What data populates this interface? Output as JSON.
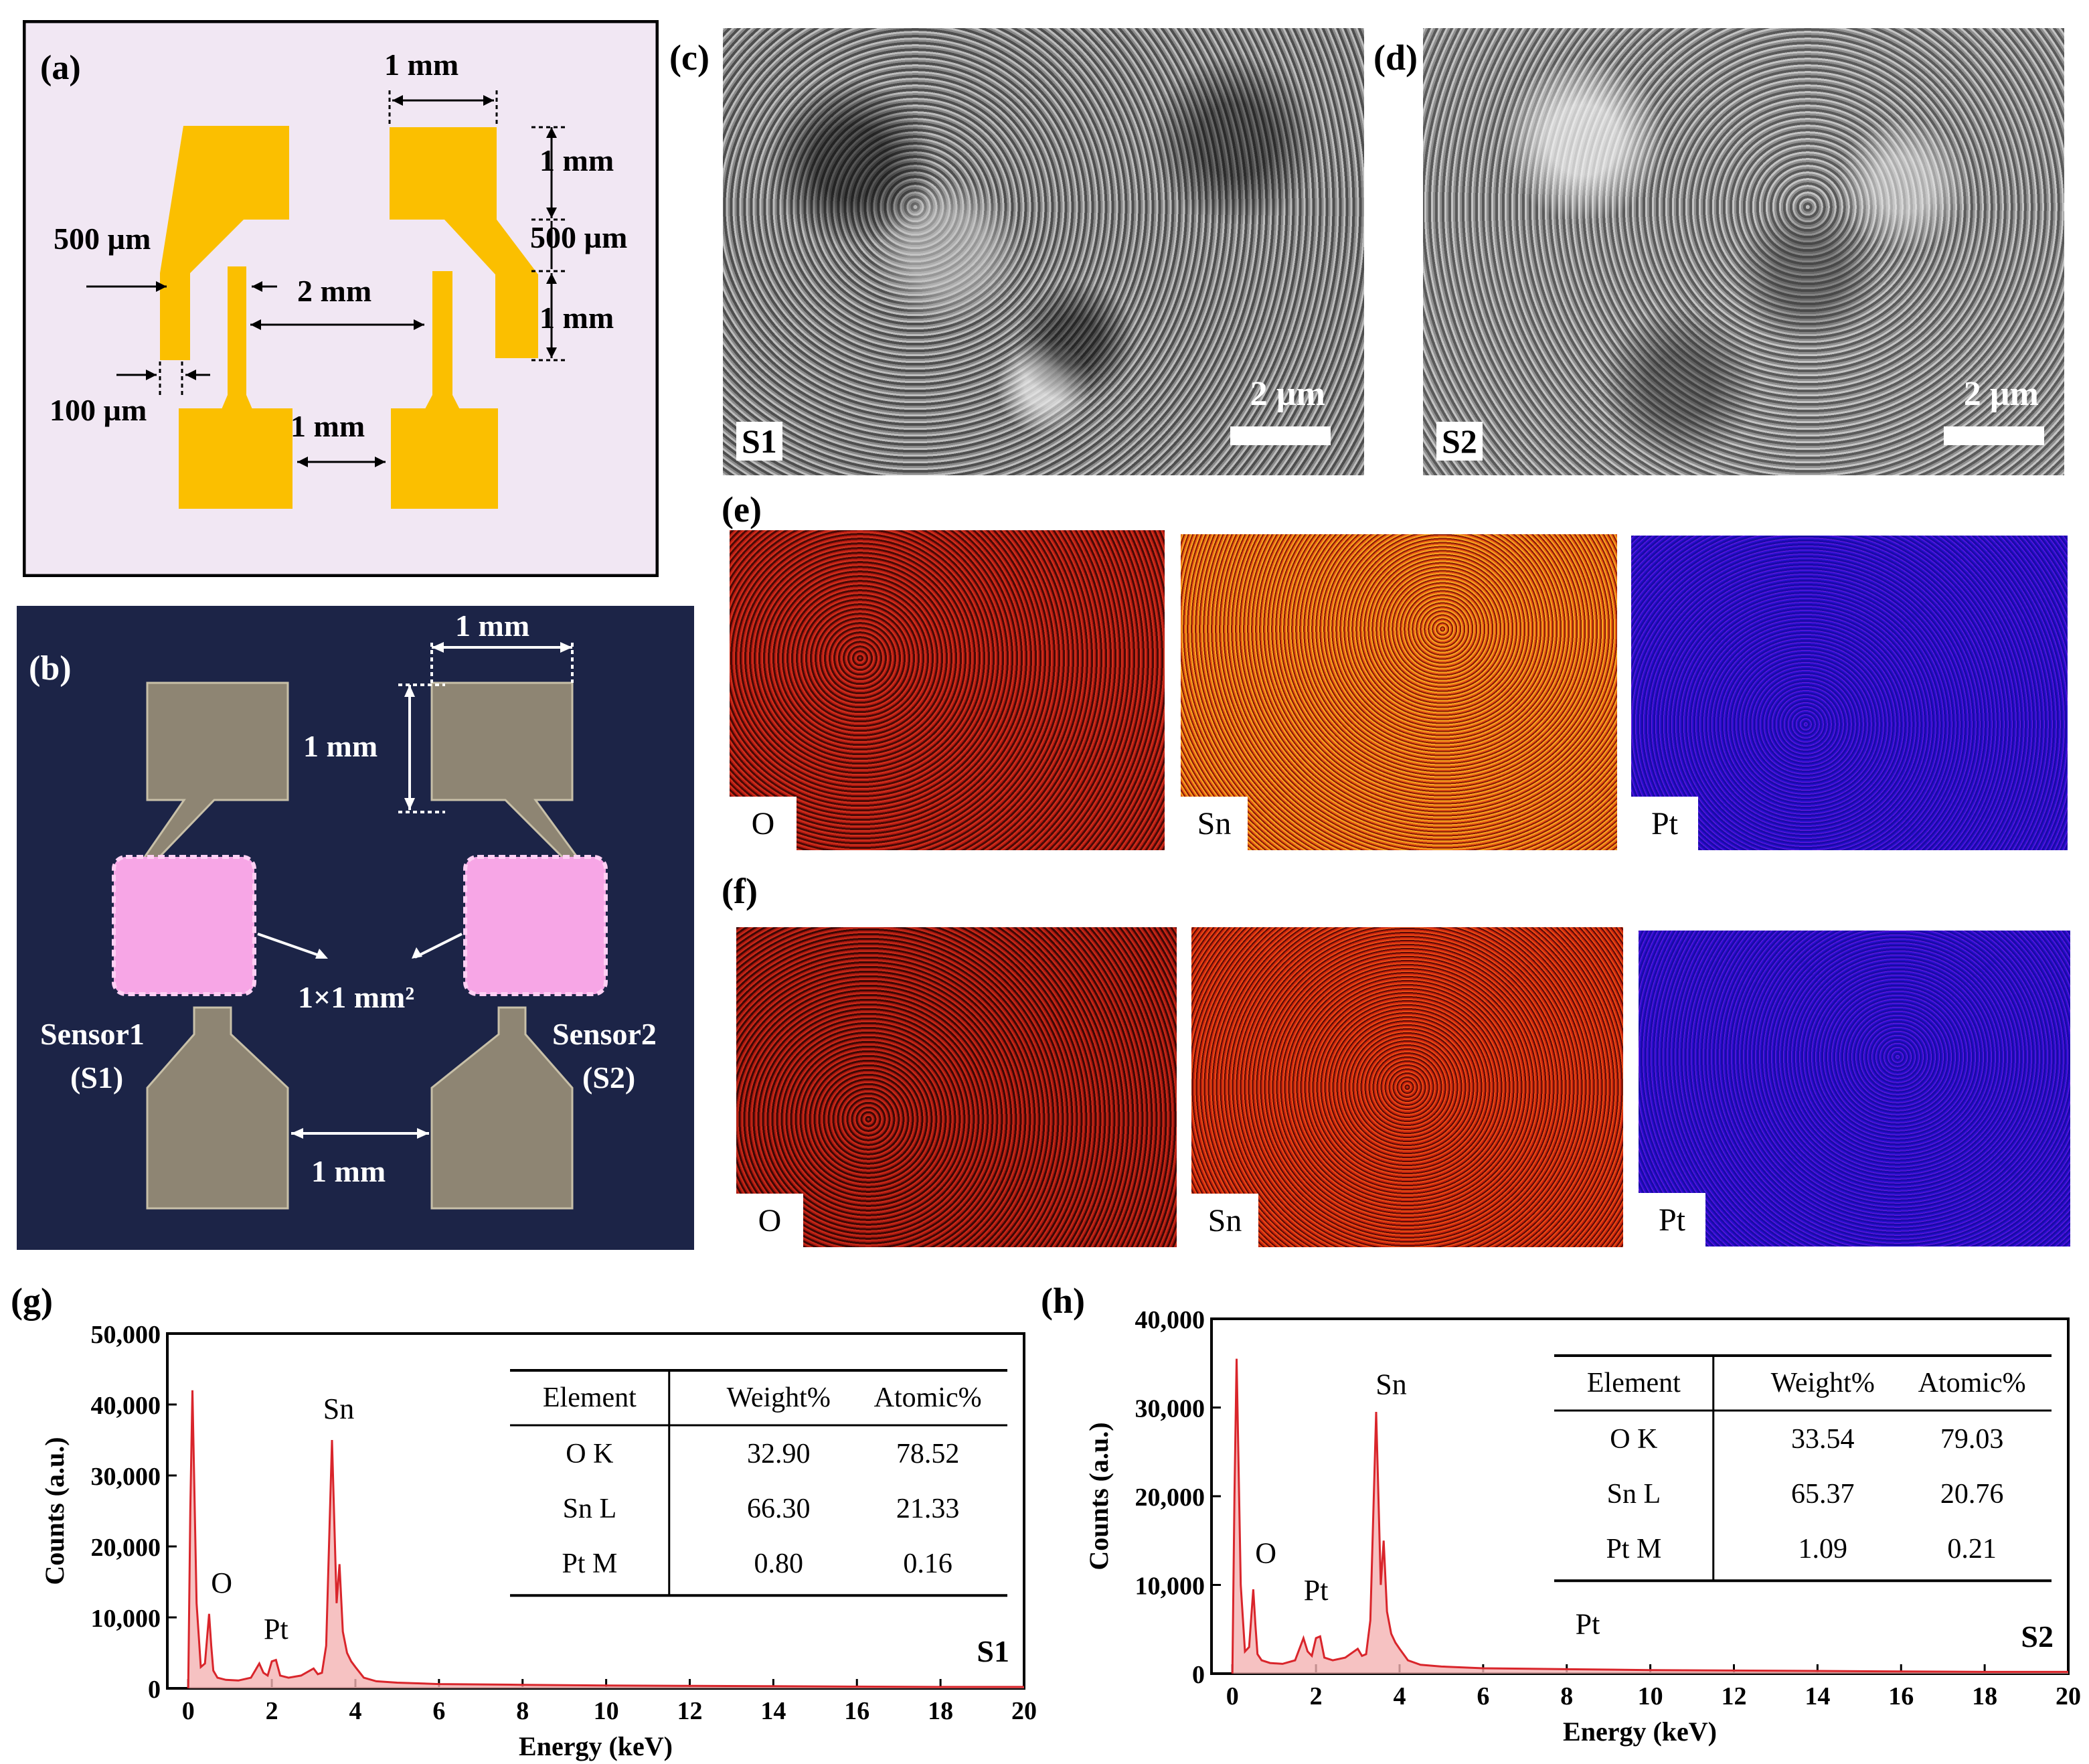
{
  "panel_labels": {
    "a": "(a)",
    "b": "(b)",
    "c": "(c)",
    "d": "(d)",
    "e": "(e)",
    "f": "(f)",
    "g": "(g)",
    "h": "(h)"
  },
  "panel_a": {
    "dims": {
      "top_width": "1 mm",
      "pad_height": "1 mm",
      "taper": "500 µm",
      "finger_length": "1 mm",
      "trace_gap": "500 µm",
      "electrode_gap": "2 mm",
      "finger_width": "100 µm",
      "bottom_gap": "1 mm"
    },
    "colors": {
      "background": "#f1e7f3",
      "electrode": "#fbbf00"
    }
  },
  "panel_b": {
    "dims": {
      "top_width": "1 mm",
      "pad_height": "1 mm",
      "bottom_gap": "1 mm"
    },
    "area": "1×1 mm²",
    "sensor1": {
      "name": "Sensor1",
      "tag": "(S1)"
    },
    "sensor2": {
      "name": "Sensor2",
      "tag": "(S2)"
    },
    "colors": {
      "background": "#1c2447",
      "pad": "#8e8573",
      "film": "#f7a6e6"
    }
  },
  "panel_c": {
    "sample": "S1",
    "scale": "2 µm"
  },
  "panel_d": {
    "sample": "S2",
    "scale": "2 µm"
  },
  "panel_e": {
    "maps": [
      "O",
      "Sn",
      "Pt"
    ]
  },
  "panel_f": {
    "maps": [
      "O",
      "Sn",
      "Pt"
    ]
  },
  "chart_data": [
    {
      "type": "line",
      "panel": "(g)",
      "sample": "S1",
      "xlabel": "Energy (keV)",
      "ylabel": "Counts (a.u.)",
      "xlim": [
        -0.5,
        20
      ],
      "ylim": [
        0,
        50000
      ],
      "xticks": [
        "0",
        "2",
        "4",
        "6",
        "8",
        "10",
        "12",
        "14",
        "16",
        "18",
        "20"
      ],
      "yticks": [
        "0",
        "10,000",
        "20,000",
        "30,000",
        "40,000",
        "50,000"
      ],
      "peak_labels": [
        "O",
        "Pt",
        "Sn"
      ],
      "color": "#d9252b",
      "series": [
        {
          "name": "S1",
          "x": [
            0,
            0.05,
            0.1,
            0.2,
            0.3,
            0.4,
            0.5,
            0.55,
            0.6,
            0.7,
            0.9,
            1.2,
            1.5,
            1.7,
            1.8,
            1.9,
            2.0,
            2.1,
            2.2,
            2.4,
            2.7,
            3.0,
            3.1,
            3.2,
            3.3,
            3.44,
            3.55,
            3.62,
            3.7,
            3.8,
            3.9,
            4.0,
            4.2,
            4.5,
            5.0,
            6,
            8,
            10,
            12,
            14,
            16,
            18,
            20
          ],
          "values": [
            0,
            25000,
            42000,
            12000,
            3000,
            3500,
            10500,
            6000,
            2500,
            1500,
            1200,
            1100,
            1500,
            3500,
            2200,
            1800,
            3800,
            4000,
            1800,
            1500,
            1800,
            2800,
            2000,
            2200,
            6000,
            35000,
            12000,
            17500,
            8000,
            5000,
            3800,
            3000,
            1500,
            1000,
            800,
            600,
            500,
            400,
            350,
            300,
            250,
            200,
            200
          ]
        }
      ],
      "table": {
        "headers": [
          "Element",
          "Weight%",
          "Atomic%"
        ],
        "rows": [
          [
            "O K",
            "32.90",
            "78.52"
          ],
          [
            "Sn L",
            "66.30",
            "21.33"
          ],
          [
            "Pt M",
            "0.80",
            "0.16"
          ]
        ]
      }
    },
    {
      "type": "line",
      "panel": "(h)",
      "sample": "S2",
      "xlabel": "Energy (keV)",
      "ylabel": "Counts (a.u.)",
      "xlim": [
        -0.5,
        20
      ],
      "ylim": [
        0,
        40000
      ],
      "xticks": [
        "0",
        "2",
        "4",
        "6",
        "8",
        "10",
        "12",
        "14",
        "16",
        "18",
        "20"
      ],
      "yticks": [
        "0",
        "10,000",
        "20,000",
        "30,000",
        "40,000"
      ],
      "peak_labels": [
        "O",
        "Pt",
        "Sn",
        "Pt"
      ],
      "color": "#d9252b",
      "series": [
        {
          "name": "S2",
          "x": [
            0,
            0.05,
            0.1,
            0.2,
            0.3,
            0.4,
            0.5,
            0.55,
            0.6,
            0.7,
            0.9,
            1.2,
            1.5,
            1.7,
            1.8,
            1.9,
            2.0,
            2.1,
            2.2,
            2.4,
            2.7,
            3.0,
            3.1,
            3.2,
            3.3,
            3.44,
            3.55,
            3.62,
            3.7,
            3.8,
            3.9,
            4.0,
            4.2,
            4.5,
            5.0,
            6,
            8,
            10,
            12,
            14,
            16,
            18,
            20
          ],
          "values": [
            0,
            20000,
            35500,
            10000,
            2500,
            3000,
            9500,
            5500,
            2200,
            1500,
            1200,
            1100,
            1500,
            4000,
            2500,
            2000,
            4000,
            4200,
            1800,
            1500,
            1800,
            2800,
            2000,
            2200,
            6000,
            29500,
            10000,
            15000,
            7000,
            4500,
            3500,
            2800,
            1500,
            1000,
            800,
            600,
            500,
            400,
            350,
            300,
            250,
            200,
            200
          ]
        }
      ],
      "table": {
        "headers": [
          "Element",
          "Weight%",
          "Atomic%"
        ],
        "rows": [
          [
            "O K",
            "33.54",
            "79.03"
          ],
          [
            "Sn L",
            "65.37",
            "20.76"
          ],
          [
            "Pt M",
            "1.09",
            "0.21"
          ]
        ]
      }
    }
  ]
}
